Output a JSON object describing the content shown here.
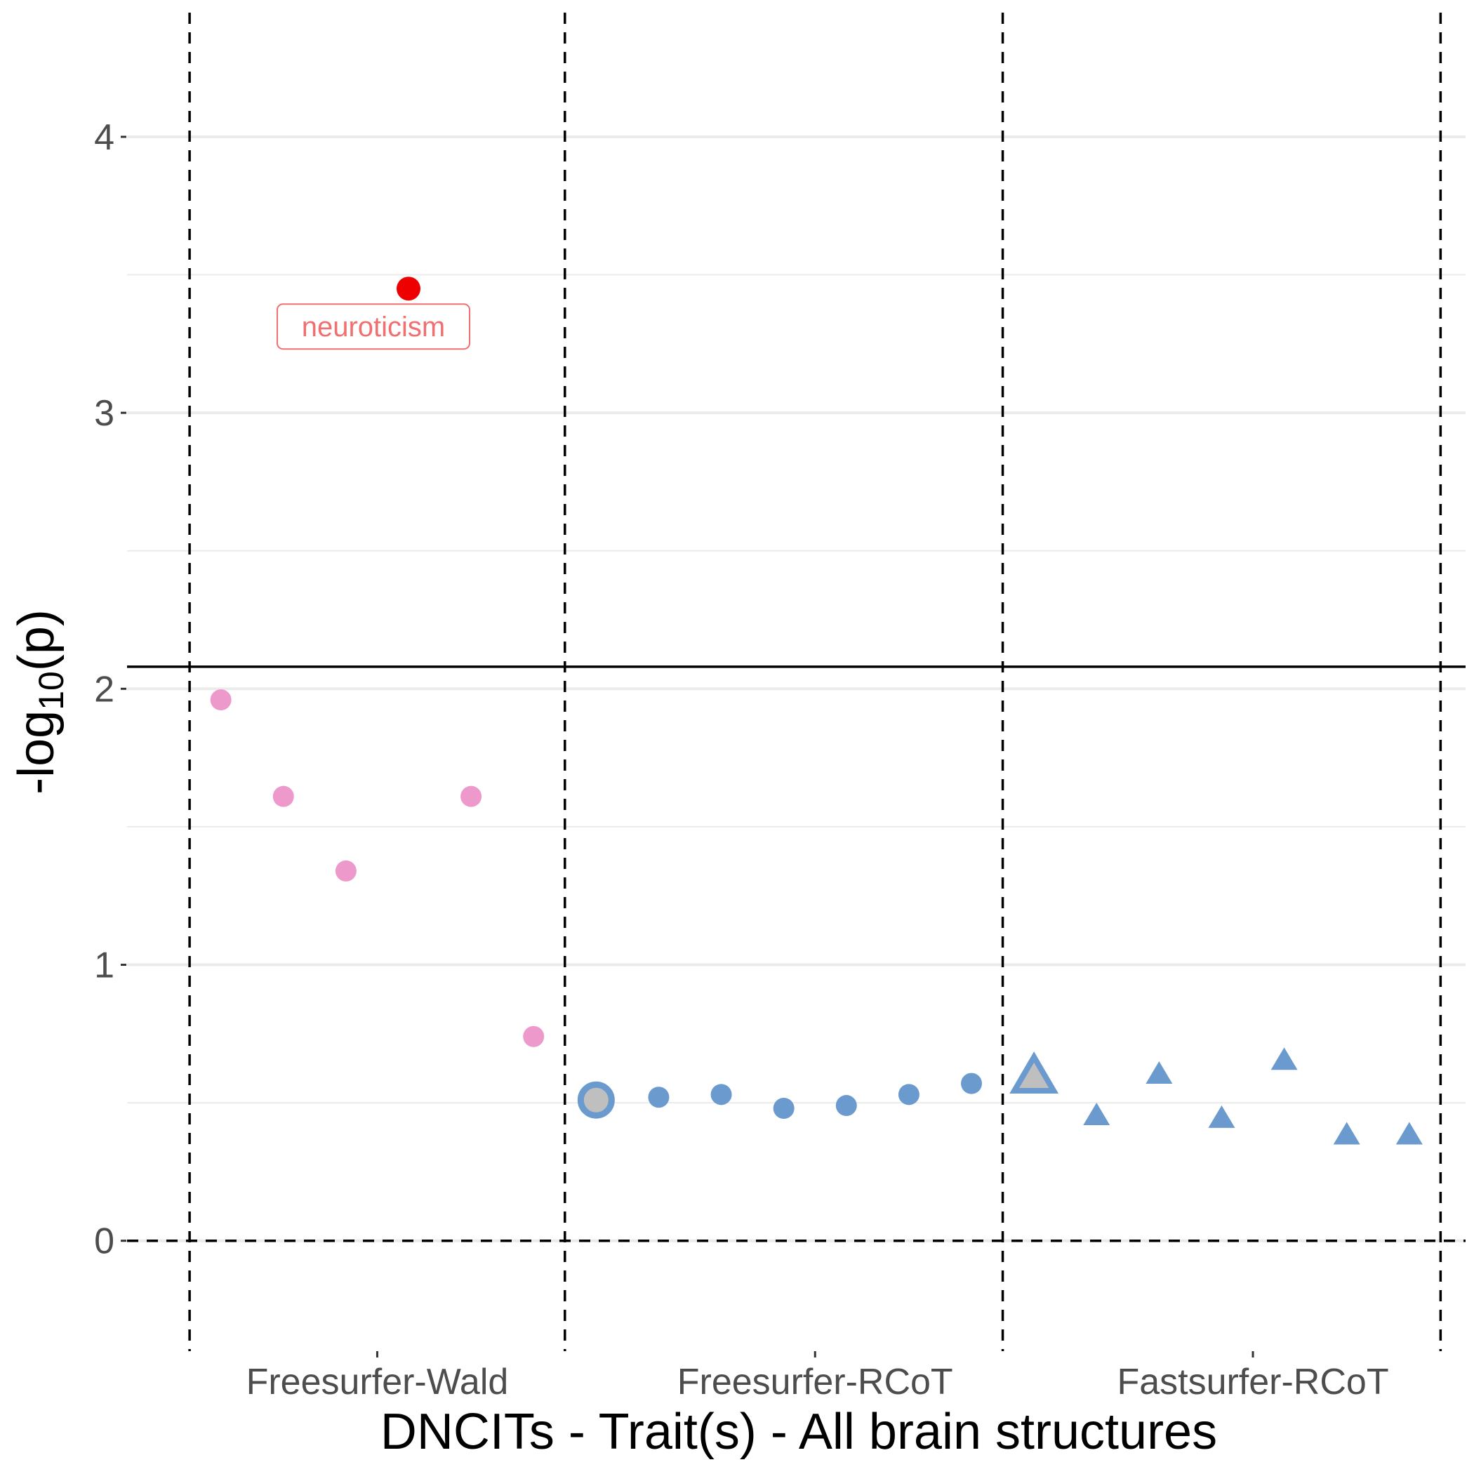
{
  "chart_data": {
    "type": "scatter",
    "title": "",
    "xlabel": "DNCITs - Trait(s) - All brain structures",
    "ylabel_main": "-log",
    "ylabel_sub": "10",
    "ylabel_tail": "(p)",
    "ylim": [
      -0.4,
      4.45
    ],
    "xlim": [
      0,
      21.4
    ],
    "yticks": [
      {
        "value": 0,
        "label": "0"
      },
      {
        "value": 1,
        "label": "1"
      },
      {
        "value": 2,
        "label": "2"
      },
      {
        "value": 3,
        "label": "3"
      },
      {
        "value": 4,
        "label": "4"
      }
    ],
    "minor_gridlines": [
      0.5,
      1.5,
      2.5,
      3.5
    ],
    "categories": [
      {
        "label": "Freesurfer-Wald",
        "x": 4
      },
      {
        "label": "Freesurfer-RCoT",
        "x": 11
      },
      {
        "label": "Fastsurfer-RCoT",
        "x": 18
      }
    ],
    "group_separators": [
      1,
      7,
      14,
      21
    ],
    "significance_threshold": 2.08,
    "zero_line": 0,
    "series": [
      {
        "name": "Freesurfer-Wald",
        "marker": "circle",
        "color": "#ee99cc",
        "points": [
          {
            "x": 1.5,
            "y": 1.96
          },
          {
            "x": 2.5,
            "y": 1.61
          },
          {
            "x": 3.5,
            "y": 1.34
          },
          {
            "x": 4.5,
            "y": 3.45,
            "highlight": true,
            "color": "#ee0000",
            "label": "neuroticism"
          },
          {
            "x": 5.5,
            "y": 1.61
          },
          {
            "x": 6.5,
            "y": 0.74
          }
        ]
      },
      {
        "name": "Freesurfer-RCoT",
        "marker": "circle",
        "color": "#6b9bce",
        "points": [
          {
            "x": 7.5,
            "y": 0.51,
            "outlined": true
          },
          {
            "x": 8.5,
            "y": 0.52
          },
          {
            "x": 9.5,
            "y": 0.53
          },
          {
            "x": 10.5,
            "y": 0.48
          },
          {
            "x": 11.5,
            "y": 0.49
          },
          {
            "x": 12.5,
            "y": 0.53
          },
          {
            "x": 13.5,
            "y": 0.57
          }
        ]
      },
      {
        "name": "Fastsurfer-RCoT",
        "marker": "triangle",
        "color": "#6b9bce",
        "points": [
          {
            "x": 14.5,
            "y": 0.59,
            "outlined": true
          },
          {
            "x": 15.5,
            "y": 0.45
          },
          {
            "x": 16.5,
            "y": 0.6
          },
          {
            "x": 17.5,
            "y": 0.44
          },
          {
            "x": 18.5,
            "y": 0.65
          },
          {
            "x": 19.5,
            "y": 0.38
          },
          {
            "x": 20.5,
            "y": 0.38
          }
        ]
      }
    ]
  },
  "colors": {
    "grid": "#ebebeb",
    "tick_text": "#4d4d4d",
    "outline_fill": "#bfbfbf",
    "annotation": "#f07070"
  }
}
